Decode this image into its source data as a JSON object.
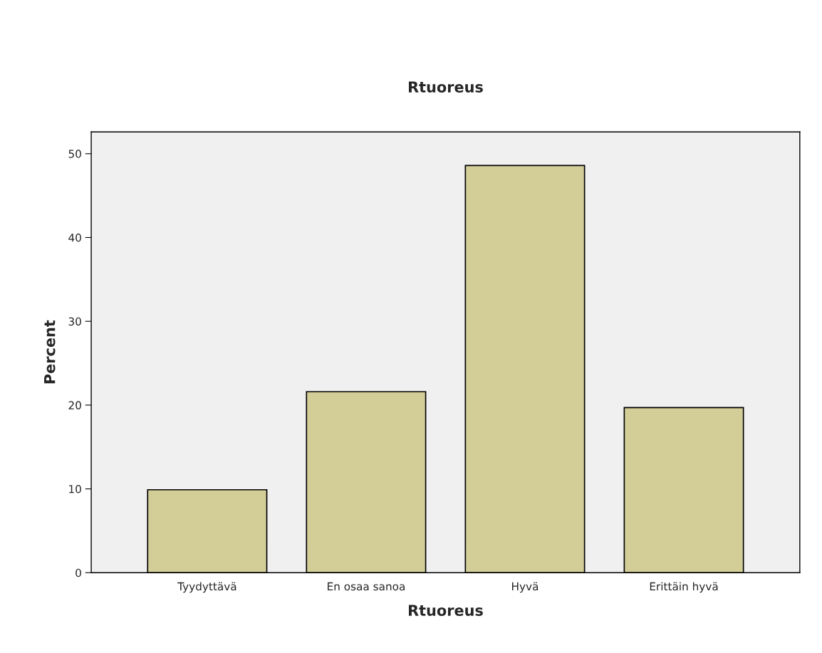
{
  "chart_data": {
    "type": "bar",
    "title": "Rtuoreus",
    "xlabel": "Rtuoreus",
    "ylabel": "Percent",
    "categories": [
      "Tyydyttävä",
      "En osaa sanoa",
      "Hyvä",
      "Erittäin hyvä"
    ],
    "values": [
      9.9,
      21.6,
      48.6,
      19.7
    ],
    "color": "#d3ce98",
    "ylim": [
      0,
      52.6
    ],
    "yticks": [
      0,
      10,
      20,
      30,
      40,
      50
    ],
    "grid": false
  }
}
